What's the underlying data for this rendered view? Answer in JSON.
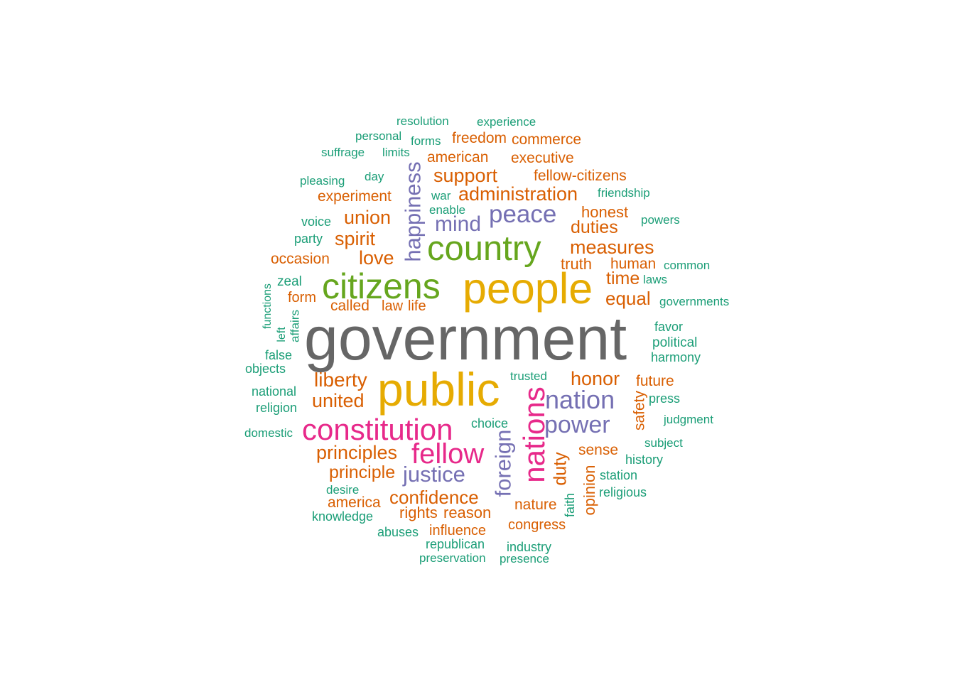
{
  "word_cloud": {
    "words": [
      {
        "text": "government",
        "color": "#666666"
      },
      {
        "text": "public",
        "color": "#e6ab02"
      },
      {
        "text": "people",
        "color": "#e6ab02"
      },
      {
        "text": "citizens",
        "color": "#66a61e"
      },
      {
        "text": "country",
        "color": "#66a61e"
      },
      {
        "text": "constitution",
        "color": "#e7298a"
      },
      {
        "text": "nations",
        "color": "#e7298a"
      },
      {
        "text": "fellow",
        "color": "#e7298a"
      },
      {
        "text": "nation",
        "color": "#7570b3"
      },
      {
        "text": "peace",
        "color": "#7570b3"
      },
      {
        "text": "power",
        "color": "#7570b3"
      },
      {
        "text": "happiness",
        "color": "#7570b3"
      },
      {
        "text": "justice",
        "color": "#7570b3"
      },
      {
        "text": "foreign",
        "color": "#7570b3"
      },
      {
        "text": "mind",
        "color": "#7570b3"
      },
      {
        "text": "administration",
        "color": "#d95f02"
      },
      {
        "text": "support",
        "color": "#d95f02"
      },
      {
        "text": "union",
        "color": "#d95f02"
      },
      {
        "text": "spirit",
        "color": "#d95f02"
      },
      {
        "text": "love",
        "color": "#d95f02"
      },
      {
        "text": "measures",
        "color": "#d95f02"
      },
      {
        "text": "duties",
        "color": "#d95f02"
      },
      {
        "text": "honest",
        "color": "#d95f02"
      },
      {
        "text": "equal",
        "color": "#d95f02"
      },
      {
        "text": "time",
        "color": "#d95f02"
      },
      {
        "text": "human",
        "color": "#d95f02"
      },
      {
        "text": "truth",
        "color": "#d95f02"
      },
      {
        "text": "liberty",
        "color": "#d95f02"
      },
      {
        "text": "united",
        "color": "#d95f02"
      },
      {
        "text": "honor",
        "color": "#d95f02"
      },
      {
        "text": "future",
        "color": "#d95f02"
      },
      {
        "text": "principles",
        "color": "#d95f02"
      },
      {
        "text": "principle",
        "color": "#d95f02"
      },
      {
        "text": "confidence",
        "color": "#d95f02"
      },
      {
        "text": "america",
        "color": "#d95f02"
      },
      {
        "text": "rights",
        "color": "#d95f02"
      },
      {
        "text": "reason",
        "color": "#d95f02"
      },
      {
        "text": "influence",
        "color": "#d95f02"
      },
      {
        "text": "congress",
        "color": "#d95f02"
      },
      {
        "text": "nature",
        "color": "#d95f02"
      },
      {
        "text": "duty",
        "color": "#d95f02"
      },
      {
        "text": "sense",
        "color": "#d95f02"
      },
      {
        "text": "opinion",
        "color": "#d95f02"
      },
      {
        "text": "safety",
        "color": "#d95f02"
      },
      {
        "text": "called",
        "color": "#d95f02"
      },
      {
        "text": "law",
        "color": "#d95f02"
      },
      {
        "text": "life",
        "color": "#d95f02"
      },
      {
        "text": "form",
        "color": "#d95f02"
      },
      {
        "text": "occasion",
        "color": "#d95f02"
      },
      {
        "text": "experiment",
        "color": "#d95f02"
      },
      {
        "text": "american",
        "color": "#d95f02"
      },
      {
        "text": "freedom",
        "color": "#d95f02"
      },
      {
        "text": "commerce",
        "color": "#d95f02"
      },
      {
        "text": "executive",
        "color": "#d95f02"
      },
      {
        "text": "fellow-citizens",
        "color": "#d95f02"
      },
      {
        "text": "resolution",
        "color": "#1b9e77"
      },
      {
        "text": "experience",
        "color": "#1b9e77"
      },
      {
        "text": "personal",
        "color": "#1b9e77"
      },
      {
        "text": "forms",
        "color": "#1b9e77"
      },
      {
        "text": "suffrage",
        "color": "#1b9e77"
      },
      {
        "text": "limits",
        "color": "#1b9e77"
      },
      {
        "text": "pleasing",
        "color": "#1b9e77"
      },
      {
        "text": "day",
        "color": "#1b9e77"
      },
      {
        "text": "war",
        "color": "#1b9e77"
      },
      {
        "text": "enable",
        "color": "#1b9e77"
      },
      {
        "text": "friendship",
        "color": "#1b9e77"
      },
      {
        "text": "powers",
        "color": "#1b9e77"
      },
      {
        "text": "voice",
        "color": "#1b9e77"
      },
      {
        "text": "party",
        "color": "#1b9e77"
      },
      {
        "text": "common",
        "color": "#1b9e77"
      },
      {
        "text": "laws",
        "color": "#1b9e77"
      },
      {
        "text": "zeal",
        "color": "#1b9e77"
      },
      {
        "text": "governments",
        "color": "#1b9e77"
      },
      {
        "text": "functions",
        "color": "#1b9e77"
      },
      {
        "text": "left",
        "color": "#1b9e77"
      },
      {
        "text": "affairs",
        "color": "#1b9e77"
      },
      {
        "text": "favor",
        "color": "#1b9e77"
      },
      {
        "text": "political",
        "color": "#1b9e77"
      },
      {
        "text": "false",
        "color": "#1b9e77"
      },
      {
        "text": "harmony",
        "color": "#1b9e77"
      },
      {
        "text": "objects",
        "color": "#1b9e77"
      },
      {
        "text": "trusted",
        "color": "#1b9e77"
      },
      {
        "text": "national",
        "color": "#1b9e77"
      },
      {
        "text": "press",
        "color": "#1b9e77"
      },
      {
        "text": "religion",
        "color": "#1b9e77"
      },
      {
        "text": "choice",
        "color": "#1b9e77"
      },
      {
        "text": "judgment",
        "color": "#1b9e77"
      },
      {
        "text": "domestic",
        "color": "#1b9e77"
      },
      {
        "text": "subject",
        "color": "#1b9e77"
      },
      {
        "text": "history",
        "color": "#1b9e77"
      },
      {
        "text": "station",
        "color": "#1b9e77"
      },
      {
        "text": "desire",
        "color": "#1b9e77"
      },
      {
        "text": "religious",
        "color": "#1b9e77"
      },
      {
        "text": "knowledge",
        "color": "#1b9e77"
      },
      {
        "text": "faith",
        "color": "#1b9e77"
      },
      {
        "text": "abuses",
        "color": "#1b9e77"
      },
      {
        "text": "republican",
        "color": "#1b9e77"
      },
      {
        "text": "industry",
        "color": "#1b9e77"
      },
      {
        "text": "preservation",
        "color": "#1b9e77"
      },
      {
        "text": "presence",
        "color": "#1b9e77"
      }
    ]
  }
}
